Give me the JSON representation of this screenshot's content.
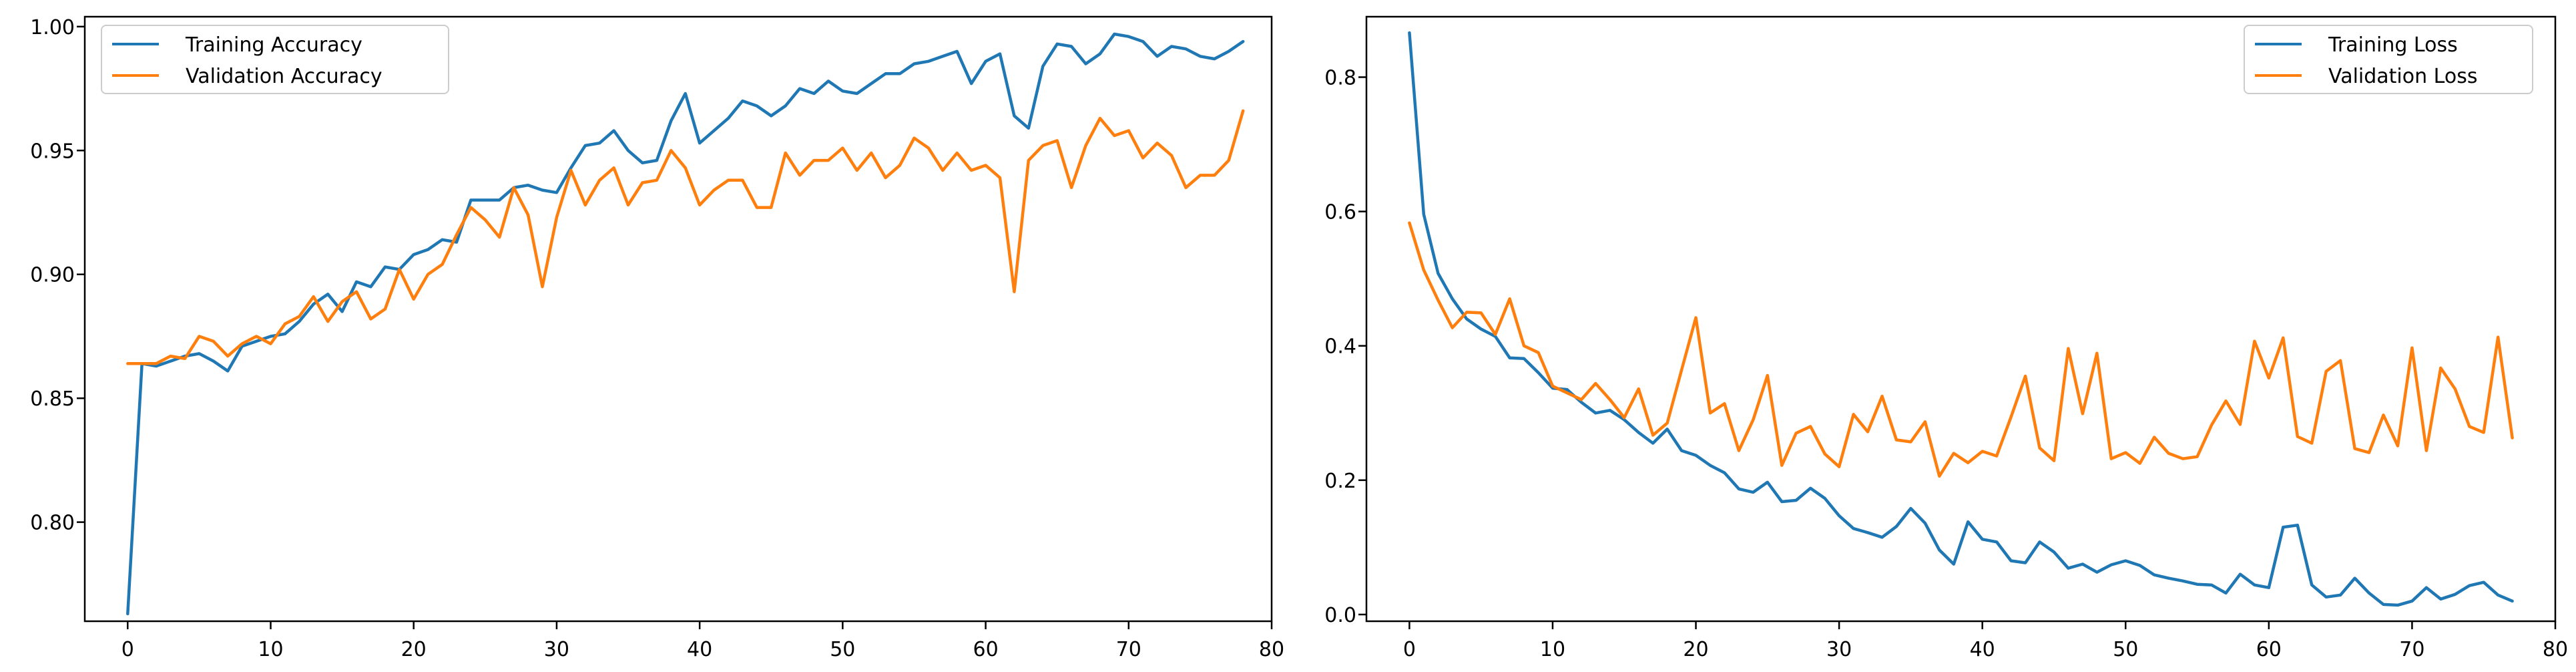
{
  "colors": {
    "training": "#1f77b4",
    "validation": "#ff7f0e",
    "axes": "#000000",
    "background": "#ffffff"
  },
  "chart_data": [
    {
      "type": "line",
      "grid": false,
      "legend_position": "upper-left",
      "xlim": [
        -3,
        80
      ],
      "ylim": [
        0.76,
        1.004
      ],
      "x_ticks": [
        0,
        10,
        20,
        30,
        40,
        50,
        60,
        70,
        80
      ],
      "y_ticks": [
        0.8,
        0.85,
        0.9,
        0.95,
        1.0
      ],
      "y_tick_labels": [
        "0.80",
        "0.85",
        "0.90",
        "0.95",
        "1.00"
      ],
      "series": [
        {
          "name": "Training Accuracy",
          "color": "#1f77b4",
          "values": [
            0.763,
            0.864,
            0.863,
            0.865,
            0.867,
            0.868,
            0.865,
            0.861,
            0.871,
            0.873,
            0.875,
            0.876,
            0.881,
            0.888,
            0.892,
            0.885,
            0.897,
            0.895,
            0.903,
            0.902,
            0.908,
            0.91,
            0.914,
            0.913,
            0.93,
            0.93,
            0.93,
            0.935,
            0.936,
            0.934,
            0.933,
            0.943,
            0.952,
            0.953,
            0.958,
            0.95,
            0.945,
            0.946,
            0.962,
            0.973,
            0.953,
            0.958,
            0.963,
            0.97,
            0.968,
            0.964,
            0.968,
            0.975,
            0.973,
            0.978,
            0.974,
            0.973,
            0.977,
            0.981,
            0.981,
            0.985,
            0.986,
            0.988,
            0.99,
            0.977,
            0.986,
            0.989,
            0.964,
            0.959,
            0.984,
            0.993,
            0.992,
            0.985,
            0.989,
            0.997,
            0.996,
            0.994,
            0.988,
            0.992,
            0.991,
            0.988,
            0.987,
            0.99,
            0.994
          ]
        },
        {
          "name": "Validation Accuracy",
          "color": "#ff7f0e",
          "values": [
            0.864,
            0.864,
            0.864,
            0.867,
            0.866,
            0.875,
            0.873,
            0.867,
            0.872,
            0.875,
            0.872,
            0.88,
            0.883,
            0.891,
            0.881,
            0.889,
            0.893,
            0.882,
            0.886,
            0.902,
            0.89,
            0.9,
            0.904,
            0.916,
            0.927,
            0.922,
            0.915,
            0.935,
            0.924,
            0.895,
            0.923,
            0.942,
            0.928,
            0.938,
            0.943,
            0.928,
            0.937,
            0.938,
            0.95,
            0.943,
            0.928,
            0.934,
            0.938,
            0.938,
            0.927,
            0.927,
            0.949,
            0.94,
            0.946,
            0.946,
            0.951,
            0.942,
            0.949,
            0.939,
            0.944,
            0.955,
            0.951,
            0.942,
            0.949,
            0.942,
            0.944,
            0.939,
            0.893,
            0.946,
            0.952,
            0.954,
            0.935,
            0.952,
            0.963,
            0.956,
            0.958,
            0.947,
            0.953,
            0.948,
            0.935,
            0.94,
            0.94,
            0.946,
            0.966
          ]
        }
      ]
    },
    {
      "type": "line",
      "grid": false,
      "legend_position": "upper-right",
      "xlim": [
        -3,
        80
      ],
      "ylim": [
        -0.01,
        0.89
      ],
      "x_ticks": [
        0,
        10,
        20,
        30,
        40,
        50,
        60,
        70,
        80
      ],
      "y_ticks": [
        0.0,
        0.2,
        0.4,
        0.6,
        0.8
      ],
      "y_tick_labels": [
        "0.0",
        "0.2",
        "0.4",
        "0.6",
        "0.8"
      ],
      "series": [
        {
          "name": "Training Loss",
          "color": "#1f77b4",
          "values": [
            0.866,
            0.596,
            0.508,
            0.47,
            0.44,
            0.425,
            0.414,
            0.382,
            0.381,
            0.36,
            0.337,
            0.335,
            0.316,
            0.3,
            0.304,
            0.29,
            0.271,
            0.255,
            0.276,
            0.244,
            0.237,
            0.222,
            0.211,
            0.187,
            0.182,
            0.197,
            0.168,
            0.17,
            0.188,
            0.173,
            0.147,
            0.128,
            0.122,
            0.115,
            0.131,
            0.158,
            0.136,
            0.096,
            0.075,
            0.138,
            0.112,
            0.108,
            0.08,
            0.077,
            0.108,
            0.093,
            0.069,
            0.075,
            0.063,
            0.074,
            0.08,
            0.073,
            0.059,
            0.054,
            0.05,
            0.045,
            0.044,
            0.032,
            0.06,
            0.044,
            0.04,
            0.13,
            0.133,
            0.044,
            0.026,
            0.029,
            0.054,
            0.032,
            0.015,
            0.014,
            0.02,
            0.04,
            0.023,
            0.03,
            0.043,
            0.048,
            0.029,
            0.02
          ]
        },
        {
          "name": "Validation Loss",
          "color": "#ff7f0e",
          "values": [
            0.583,
            0.513,
            0.468,
            0.427,
            0.45,
            0.449,
            0.417,
            0.47,
            0.4,
            0.39,
            0.34,
            0.33,
            0.32,
            0.344,
            0.32,
            0.293,
            0.336,
            0.267,
            0.285,
            0.364,
            0.442,
            0.3,
            0.314,
            0.244,
            0.29,
            0.356,
            0.222,
            0.27,
            0.28,
            0.239,
            0.22,
            0.298,
            0.272,
            0.325,
            0.26,
            0.257,
            0.287,
            0.206,
            0.24,
            0.226,
            0.243,
            0.236,
            0.294,
            0.355,
            0.248,
            0.229,
            0.396,
            0.299,
            0.389,
            0.232,
            0.241,
            0.225,
            0.264,
            0.24,
            0.232,
            0.235,
            0.282,
            0.318,
            0.283,
            0.407,
            0.352,
            0.412,
            0.265,
            0.255,
            0.362,
            0.378,
            0.247,
            0.241,
            0.297,
            0.251,
            0.397,
            0.244,
            0.367,
            0.336,
            0.28,
            0.271,
            0.413,
            0.263
          ]
        }
      ]
    }
  ]
}
